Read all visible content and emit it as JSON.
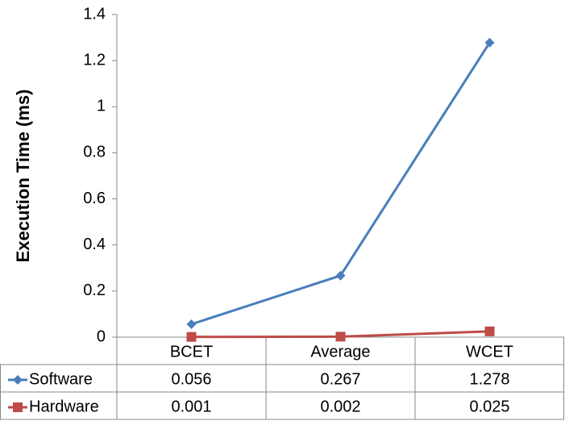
{
  "chart_data": {
    "type": "line",
    "y_label": "Execution Time (ms)",
    "categories": [
      "BCET",
      "Average",
      "WCET"
    ],
    "series": [
      {
        "name": "Software",
        "color": "#4a7ebb",
        "marker": "diamond",
        "values": [
          0.056,
          0.267,
          1.278
        ]
      },
      {
        "name": "Hardware",
        "color": "#be4b48",
        "marker": "square",
        "values": [
          0.001,
          0.002,
          0.025
        ]
      }
    ],
    "ylim": [
      0,
      1.4
    ],
    "yticks": [
      0,
      0.2,
      0.4,
      0.6,
      0.8,
      1,
      1.2,
      1.4
    ],
    "grid": false,
    "data_table": true
  }
}
